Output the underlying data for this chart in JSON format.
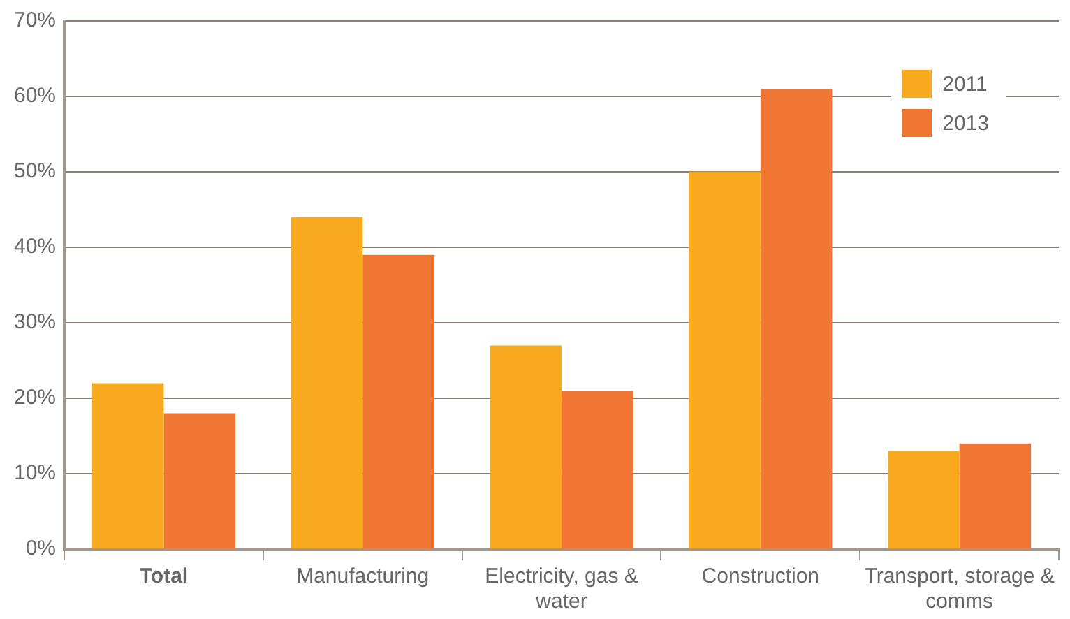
{
  "chart_data": {
    "type": "bar",
    "categories": [
      "Total",
      "Manufacturing",
      "Electricity, gas & water",
      "Construction",
      "Transport, storage & comms"
    ],
    "series": [
      {
        "name": "2011",
        "color": "#f8a91d",
        "values": [
          22,
          44,
          27,
          50,
          13
        ]
      },
      {
        "name": "2013",
        "color": "#f17633",
        "values": [
          18,
          39,
          21,
          61,
          14
        ]
      }
    ],
    "ylim": [
      0,
      70
    ],
    "yticks": [
      {
        "value": 0,
        "label": "0%"
      },
      {
        "value": 10,
        "label": "10%"
      },
      {
        "value": 20,
        "label": "20%"
      },
      {
        "value": 30,
        "label": "30%"
      },
      {
        "value": 40,
        "label": "40%"
      },
      {
        "value": 50,
        "label": "50%"
      },
      {
        "value": 60,
        "label": "60%"
      },
      {
        "value": 70,
        "label": "70%"
      }
    ],
    "grid": "y",
    "legend": "top right"
  }
}
